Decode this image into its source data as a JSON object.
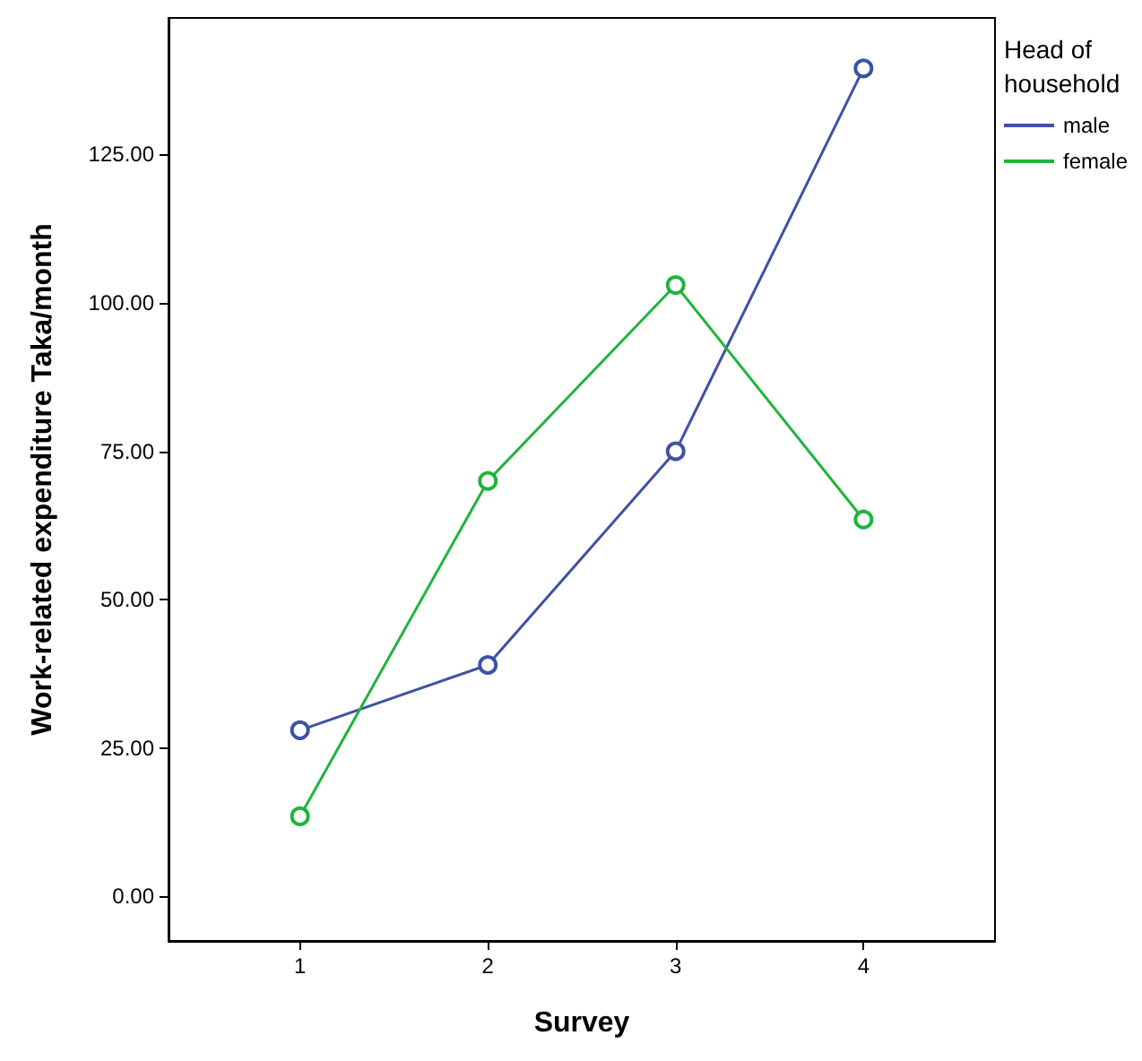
{
  "chart_data": {
    "type": "line",
    "xlabel": "Survey",
    "ylabel": "Work-related expenditure Taka/month",
    "legend_title": "Head of household",
    "x": [
      1,
      2,
      3,
      4
    ],
    "xlim": [
      0.3,
      4.7
    ],
    "xticks": [
      1,
      2,
      3,
      4
    ],
    "ylim": [
      -7.5,
      148
    ],
    "yticks": [
      {
        "value": 0,
        "label": "0.00"
      },
      {
        "value": 25,
        "label": "25.00"
      },
      {
        "value": 50,
        "label": "50.00"
      },
      {
        "value": 75,
        "label": "75.00"
      },
      {
        "value": 100,
        "label": "100.00"
      },
      {
        "value": 125,
        "label": "125.00"
      }
    ],
    "series": [
      {
        "name": "male",
        "color": "#3e52a3",
        "values": [
          28,
          39,
          75,
          139.5
        ]
      },
      {
        "name": "female",
        "color": "#1fb43c",
        "values": [
          13.5,
          70,
          103,
          63.5
        ]
      }
    ],
    "marker": "circle",
    "line_style": "solid",
    "grid": false,
    "legend": "top right"
  }
}
